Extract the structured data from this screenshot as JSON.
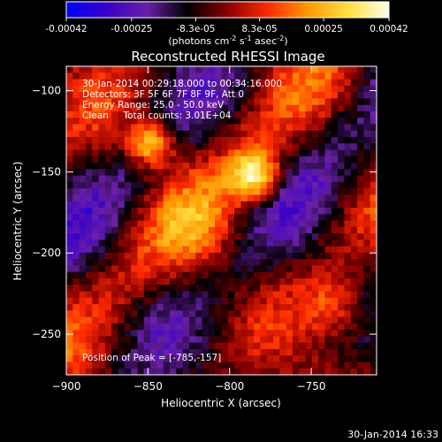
{
  "chart_data": {
    "type": "heatmap",
    "title": "Reconstructed RHESSI Image",
    "colorbar": {
      "ticks": [
        "-0.00042",
        "-0.00025",
        "-8.3e-05",
        "8.3e-05",
        "0.00025",
        "0.00042"
      ],
      "tick_values": [
        -0.00042,
        -0.00025,
        -8.3e-05,
        8.3e-05,
        0.00025,
        0.00042
      ],
      "range": [
        -0.00042,
        0.00042
      ],
      "units_prefix": "(photons cm",
      "units_exp1": "-2",
      "units_mid": " s",
      "units_exp2": "-1",
      "units_mid2": " asec",
      "units_exp3": "-2",
      "units_suffix": ")",
      "stops": [
        "#0000ff",
        "#3a00c8",
        "#6a1fa8",
        "#000000",
        "#8a0000",
        "#ff2a00",
        "#ff9a00",
        "#ffe040",
        "#ffffe8"
      ]
    },
    "xlabel": "Heliocentric X (arcsec)",
    "ylabel": "Heliocentric Y (arcsec)",
    "xlim": [
      -900,
      -710
    ],
    "ylim": [
      -275,
      -85
    ],
    "x_ticks": [
      -900,
      -850,
      -800,
      -750
    ],
    "x_tick_labels": [
      "−900",
      "−850",
      "−800",
      "−750"
    ],
    "y_ticks": [
      -100,
      -150,
      -200,
      -250
    ],
    "y_tick_labels": [
      "−100",
      "−150",
      "−200",
      "−250"
    ],
    "annotations": [
      "30-Jan-2014 00:29:18.000 to 00:34:16.000",
      "Detectors: 3F 5F 6F 7F 8F 9F, Att 0",
      "Energy Range: 25.0 - 50.0 keV",
      "Clean     Total counts: 3.01E+04"
    ],
    "peak_label": "Position of Peak = [-785,-157]",
    "peak": {
      "x": -785,
      "y": -157
    },
    "sources": [
      {
        "x": -848,
        "y": -133,
        "sigma": 10,
        "amplitude": 0.0004
      },
      {
        "x": -783,
        "y": -153,
        "sigma": 11,
        "amplitude": 0.00042
      },
      {
        "x": -735,
        "y": -235,
        "sigma": 14,
        "amplitude": 0.00018
      },
      {
        "x": -815,
        "y": -190,
        "sigma": 18,
        "amplitude": 0.00012
      }
    ]
  },
  "footer": {
    "timestamp": "30-Jan-2014 16:33"
  }
}
